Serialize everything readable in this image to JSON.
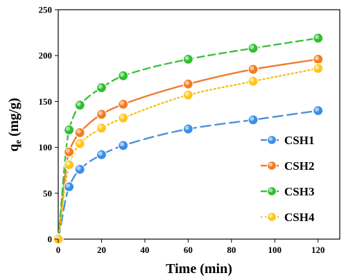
{
  "chart_data": {
    "type": "scatter",
    "xlabel": "Time (min)",
    "ylabel_main": "q",
    "ylabel_sub": "e",
    "ylabel_unit": " (mg/g)",
    "xlim": [
      0,
      130
    ],
    "ylim": [
      0,
      250
    ],
    "xticks": [
      0,
      20,
      40,
      60,
      80,
      100,
      120
    ],
    "yticks": [
      0,
      50,
      100,
      150,
      200,
      250
    ],
    "grid": false,
    "legend_position": "bottom-right",
    "series": [
      {
        "name": "CSH1",
        "color": "#4a90d9",
        "marker_color": "#3b8ee6",
        "dash": "14,7",
        "x": [
          0,
          5,
          10,
          20,
          30,
          60,
          90,
          120
        ],
        "y": [
          0,
          57,
          76,
          92,
          102,
          120,
          130,
          140
        ]
      },
      {
        "name": "CSH2",
        "color": "#ef7b2f",
        "marker_color": "#f47c20",
        "dash": "",
        "x": [
          0,
          5,
          10,
          20,
          30,
          60,
          90,
          120
        ],
        "y": [
          0,
          95,
          116,
          136,
          147,
          169,
          185,
          196
        ]
      },
      {
        "name": "CSH3",
        "color": "#3cc13c",
        "marker_color": "#2fbf2f",
        "dash": "10,6",
        "x": [
          0,
          5,
          10,
          20,
          30,
          60,
          90,
          120
        ],
        "y": [
          0,
          119,
          146,
          165,
          178,
          196,
          208,
          219
        ]
      },
      {
        "name": "CSH4",
        "color": "#f2c218",
        "marker_color": "#ffc61a",
        "dash": "2,4",
        "x": [
          0,
          5,
          10,
          20,
          30,
          60,
          90,
          120
        ],
        "y": [
          0,
          81,
          104,
          121,
          132,
          157,
          172,
          186
        ]
      }
    ]
  }
}
